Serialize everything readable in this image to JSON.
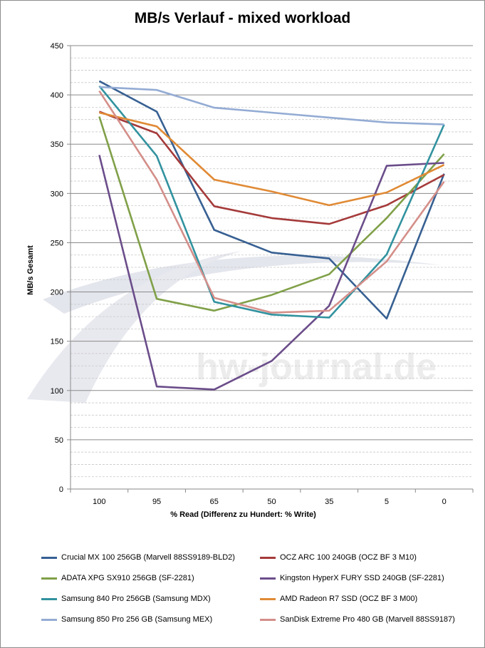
{
  "chart_data": {
    "type": "line",
    "title": "MB/s Verlauf - mixed workload",
    "xlabel": "% Read (Differenz zu Hundert: % Write)",
    "ylabel": "MB/s Gesamt",
    "categories": [
      "100",
      "95",
      "65",
      "50",
      "35",
      "5",
      "0"
    ],
    "ylim": [
      0,
      450
    ],
    "yticks": [
      "0",
      "50",
      "100",
      "150",
      "200",
      "250",
      "300",
      "350",
      "400",
      "450"
    ],
    "grid": true,
    "legend_position": "bottom",
    "watermark": "hw-journal.de",
    "series": [
      {
        "name": "Crucial MX 100 256GB (Marvell 88SS9189-BLD2)",
        "color": "#376092",
        "values": [
          414,
          383,
          263,
          240,
          234,
          173,
          320
        ]
      },
      {
        "name": "OCZ ARC 100 240GB (OCZ BF 3 M10)",
        "color": "#a53a3a",
        "values": [
          383,
          361,
          287,
          275,
          269,
          288,
          319
        ]
      },
      {
        "name": "ADATA XPG SX910 256GB (SF-2281)",
        "color": "#80a048",
        "values": [
          378,
          193,
          181,
          197,
          218,
          275,
          340
        ]
      },
      {
        "name": "Kingston HyperX FURY SSD 240GB (SF-2281)",
        "color": "#6b4d8a",
        "values": [
          339,
          104,
          101,
          130,
          186,
          328,
          331
        ]
      },
      {
        "name": "Samsung 840 Pro 256GB (Samsung MDX)",
        "color": "#31929f",
        "values": [
          409,
          338,
          190,
          177,
          174,
          238,
          370
        ]
      },
      {
        "name": "AMD Radeon R7 SSD (OCZ BF 3 M00)",
        "color": "#e08a35",
        "values": [
          382,
          368,
          314,
          302,
          288,
          301,
          329
        ]
      },
      {
        "name": "Samsung 850 Pro 256 GB (Samsung MEX)",
        "color": "#94acd4",
        "values": [
          408,
          405,
          387,
          382,
          377,
          372,
          370
        ]
      },
      {
        "name": "SanDisk Extreme Pro 480 GB (Marvell 88SS9187)",
        "color": "#d48f8a",
        "values": [
          404,
          314,
          194,
          179,
          181,
          231,
          312
        ]
      }
    ]
  }
}
